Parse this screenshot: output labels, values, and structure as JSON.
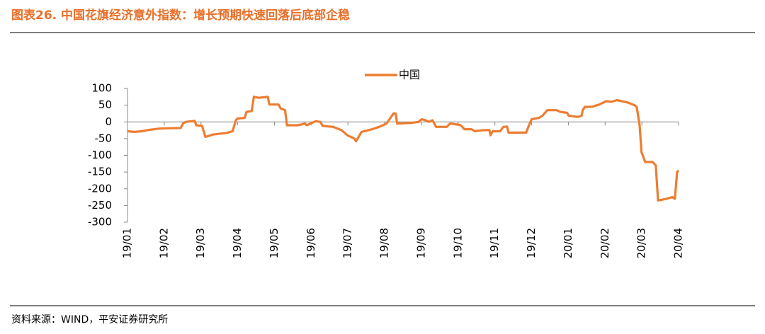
{
  "header": {
    "title": "图表26. 中国花旗经济意外指数：增长预期快速回落后底部企稳"
  },
  "chart_data": {
    "type": "line",
    "series": [
      {
        "name": "中国",
        "color": "#ed7d31",
        "x": [
          0,
          0.19,
          0.39,
          0.58,
          0.87,
          1.16,
          1.45,
          1.51,
          1.58,
          1.83,
          1.87,
          2.03,
          2.12,
          2.32,
          2.7,
          2.86,
          2.95,
          2.99,
          3.19,
          3.24,
          3.38,
          3.44,
          3.57,
          3.82,
          3.86,
          4.11,
          4.17,
          4.29,
          4.34,
          4.63,
          4.73,
          4.83,
          4.88,
          5.12,
          5.25,
          5.31,
          5.6,
          5.83,
          5.98,
          6.18,
          6.22,
          6.37,
          6.66,
          6.85,
          6.95,
          7.05,
          7.24,
          7.3,
          7.34,
          7.72,
          7.92,
          8.01,
          8.11,
          8.2,
          8.3,
          8.4,
          8.69,
          8.78,
          8.98,
          9.07,
          9.17,
          9.36,
          9.46,
          9.65,
          9.85,
          9.88,
          9.94,
          10.14,
          10.23,
          10.33,
          10.37,
          10.52,
          10.85,
          10.91,
          11.0,
          11.2,
          11.29,
          11.43,
          11.68,
          11.78,
          11.97,
          12.01,
          12.26,
          12.36,
          12.39,
          12.45,
          12.64,
          12.84,
          13.03,
          13.17,
          13.32,
          13.61,
          13.8,
          13.86,
          13.94,
          13.99,
          14.09,
          14.29,
          14.38,
          14.44,
          14.67,
          14.83,
          14.9,
          14.96,
          15.0
        ],
        "values": [
          -28,
          -30,
          -28,
          -24,
          -20,
          -19,
          -18,
          -5,
          0,
          3,
          -10,
          -12,
          -45,
          -38,
          -33,
          -28,
          5,
          10,
          12,
          30,
          32,
          75,
          72,
          75,
          52,
          52,
          40,
          35,
          -10,
          -10,
          -8,
          -5,
          -10,
          2,
          0,
          -12,
          -15,
          -25,
          -40,
          -50,
          -58,
          -30,
          -22,
          -15,
          -10,
          -5,
          25,
          25,
          -5,
          -3,
          0,
          8,
          5,
          0,
          5,
          -15,
          -15,
          -5,
          -8,
          -10,
          -22,
          -22,
          -28,
          -25,
          -24,
          -40,
          -28,
          -28,
          -15,
          -14,
          -32,
          -32,
          -32,
          -15,
          8,
          12,
          18,
          35,
          35,
          30,
          27,
          18,
          15,
          18,
          35,
          45,
          45,
          52,
          62,
          60,
          65,
          58,
          50,
          45,
          -10,
          -90,
          -120,
          -120,
          -130,
          -235,
          -230,
          -225,
          -230,
          -150,
          -145
        ]
      }
    ],
    "xlim": [
      0,
      15
    ],
    "xticks": [
      {
        "value": 0,
        "label": "19/01"
      },
      {
        "value": 1,
        "label": "19/02"
      },
      {
        "value": 2,
        "label": "19/03"
      },
      {
        "value": 3,
        "label": "19/04"
      },
      {
        "value": 4,
        "label": "19/05"
      },
      {
        "value": 5,
        "label": "19/06"
      },
      {
        "value": 6,
        "label": "19/07"
      },
      {
        "value": 7,
        "label": "19/08"
      },
      {
        "value": 8,
        "label": "19/09"
      },
      {
        "value": 9,
        "label": "19/10"
      },
      {
        "value": 10,
        "label": "19/11"
      },
      {
        "value": 11,
        "label": "19/12"
      },
      {
        "value": 12,
        "label": "20/01"
      },
      {
        "value": 13,
        "label": "20/02"
      },
      {
        "value": 14,
        "label": "20/03"
      },
      {
        "value": 15,
        "label": "20/04"
      }
    ],
    "ylim": [
      -300,
      100
    ],
    "yticks": [
      -300,
      -250,
      -200,
      -150,
      -100,
      -50,
      0,
      50,
      100
    ],
    "legend": "top"
  },
  "footer": {
    "source": "资料来源：WIND，平安证券研究所"
  }
}
